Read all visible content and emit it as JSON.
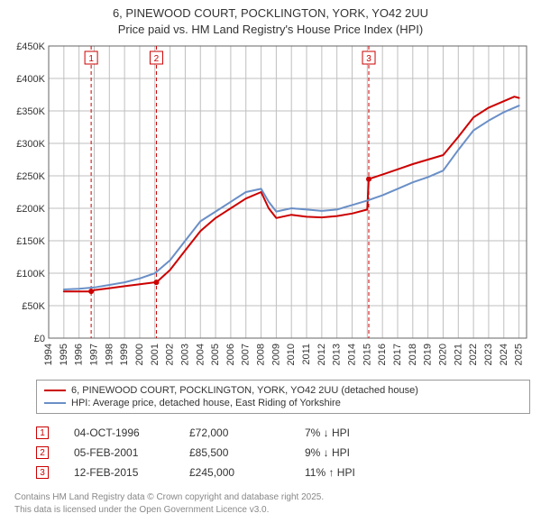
{
  "title_line1": "6, PINEWOOD COURT, POCKLINGTON, YORK, YO42 2UU",
  "title_line2": "Price paid vs. HM Land Registry's House Price Index (HPI)",
  "chart": {
    "type": "line",
    "background": "#ffffff",
    "grid_color": "#bfbfbf",
    "axis_color": "#666666",
    "x_years": [
      1994,
      1995,
      1996,
      1997,
      1998,
      1999,
      2000,
      2001,
      2002,
      2003,
      2004,
      2005,
      2006,
      2007,
      2008,
      2009,
      2010,
      2011,
      2012,
      2013,
      2014,
      2015,
      2016,
      2017,
      2018,
      2019,
      2020,
      2021,
      2022,
      2023,
      2024,
      2025
    ],
    "xlim": [
      1994,
      2025.5
    ],
    "ylim": [
      0,
      450
    ],
    "ytick_step": 50,
    "ytick_labels": [
      "£0",
      "£50K",
      "£100K",
      "£150K",
      "£200K",
      "£250K",
      "£300K",
      "£350K",
      "£400K",
      "£450K"
    ],
    "series": [
      {
        "name": "6, PINEWOOD COURT, POCKLINGTON, YORK, YO42 2UU (detached house)",
        "color": "#cc0000",
        "line_width": 2,
        "x": [
          1995,
          1996,
          1996.8,
          1997,
          1998,
          1999,
          2000,
          2001,
          2001.1,
          2002,
          2003,
          2004,
          2005,
          2006,
          2007,
          2008,
          2008.5,
          2009,
          2010,
          2011,
          2012,
          2013,
          2014,
          2015,
          2015.1,
          2016,
          2017,
          2018,
          2019,
          2020,
          2021,
          2022,
          2023,
          2024,
          2024.7,
          2025
        ],
        "y": [
          72,
          72,
          72,
          74,
          77,
          80,
          83,
          86,
          86,
          105,
          135,
          165,
          185,
          200,
          215,
          225,
          200,
          185,
          190,
          187,
          186,
          188,
          192,
          198,
          245,
          252,
          260,
          268,
          275,
          282,
          310,
          340,
          355,
          365,
          372,
          370
        ]
      },
      {
        "name": "HPI: Average price, detached house, East Riding of Yorkshire",
        "color": "#6a8fc7",
        "line_width": 2,
        "x": [
          1995,
          1996,
          1997,
          1998,
          1999,
          2000,
          2001,
          2002,
          2003,
          2004,
          2005,
          2006,
          2007,
          2008,
          2008.5,
          2009,
          2010,
          2011,
          2012,
          2013,
          2014,
          2015,
          2016,
          2017,
          2018,
          2019,
          2020,
          2021,
          2022,
          2023,
          2024,
          2025
        ],
        "y": [
          75,
          76,
          78,
          82,
          86,
          92,
          100,
          120,
          150,
          180,
          195,
          210,
          225,
          230,
          210,
          195,
          200,
          198,
          196,
          198,
          205,
          212,
          220,
          230,
          240,
          248,
          258,
          290,
          320,
          335,
          348,
          358
        ]
      }
    ],
    "markers": [
      {
        "num": "1",
        "x": 1996.8,
        "y": 72
      },
      {
        "num": "2",
        "x": 2001.1,
        "y": 86
      },
      {
        "num": "3",
        "x": 2015.1,
        "y": 245
      }
    ],
    "marker_box_border": "#cc0000",
    "marker_line_color": "#cc0000",
    "marker_line_dash": "4,3"
  },
  "legend": {
    "series1_label": "6, PINEWOOD COURT, POCKLINGTON, YORK, YO42 2UU (detached house)",
    "series1_color": "#cc0000",
    "series2_label": "HPI: Average price, detached house, East Riding of Yorkshire",
    "series2_color": "#6a8fc7"
  },
  "markers_table": [
    {
      "num": "1",
      "date": "04-OCT-1996",
      "price": "£72,000",
      "pct": "7% ↓ HPI"
    },
    {
      "num": "2",
      "date": "05-FEB-2001",
      "price": "£85,500",
      "pct": "9% ↓ HPI"
    },
    {
      "num": "3",
      "date": "12-FEB-2015",
      "price": "£245,000",
      "pct": "11% ↑ HPI"
    }
  ],
  "footer_line1": "Contains HM Land Registry data © Crown copyright and database right 2025.",
  "footer_line2": "This data is licensed under the Open Government Licence v3.0."
}
